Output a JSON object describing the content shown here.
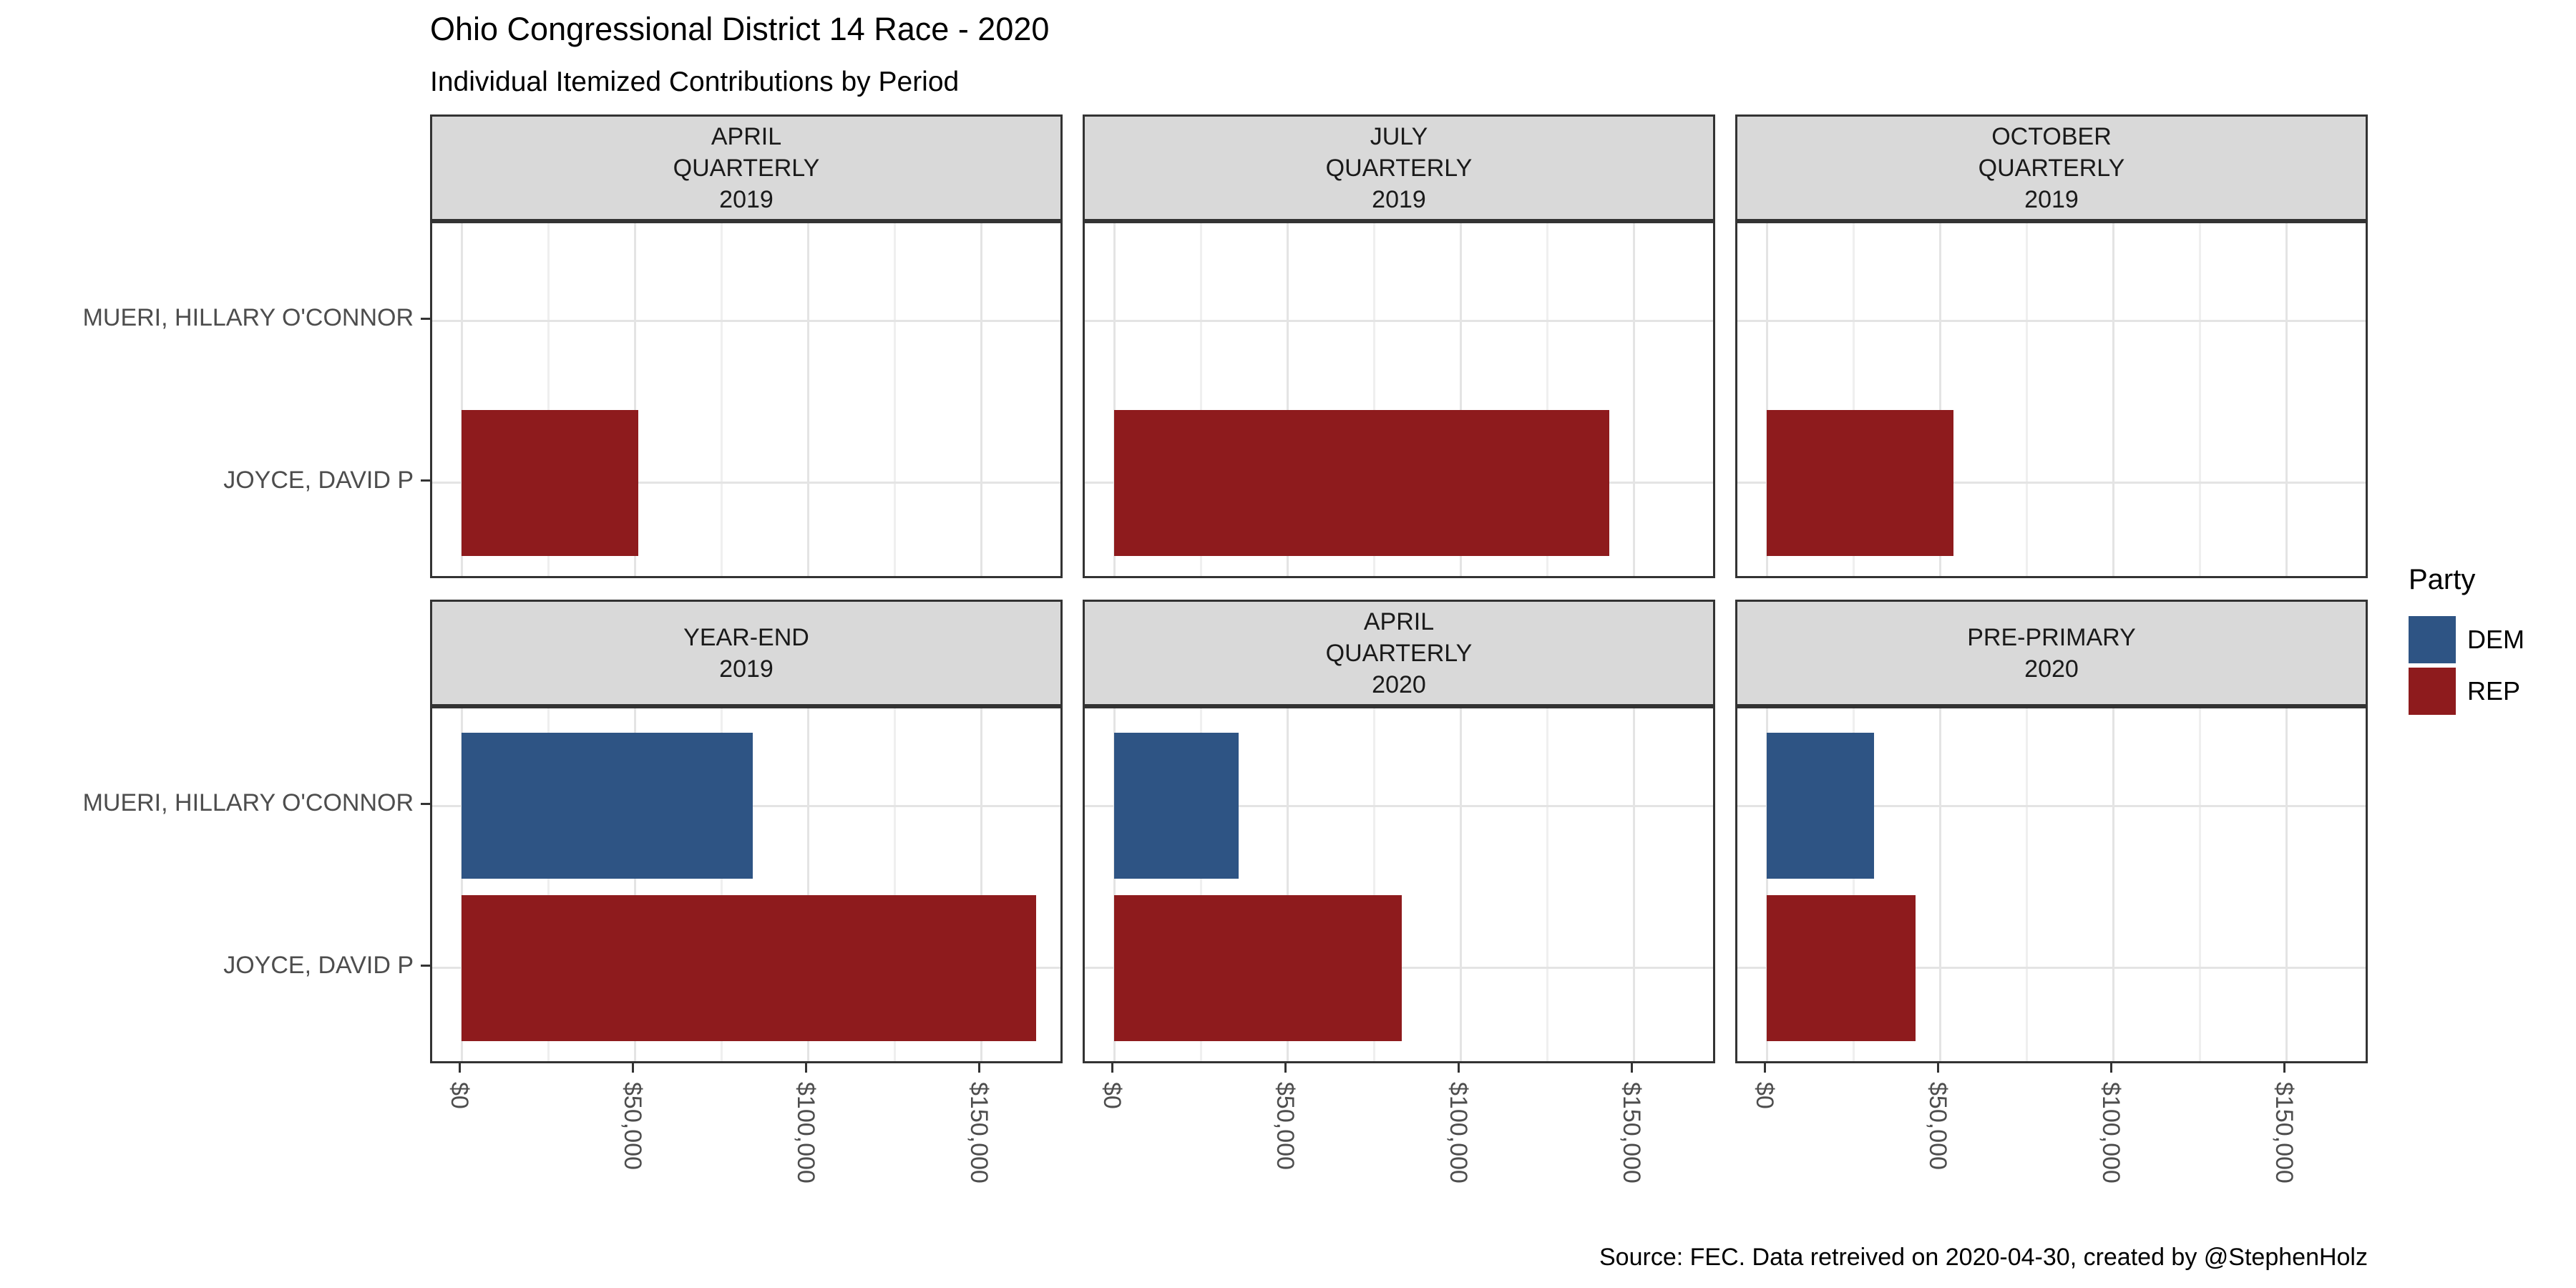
{
  "title": "Ohio Congressional District 14 Race - 2020",
  "subtitle": "Individual Itemized Contributions by Period",
  "caption": "Source: FEC. Data retreived on 2020-04-30, created by @StephenHolz",
  "legend": {
    "title": "Party",
    "items": [
      {
        "label": "DEM",
        "color": "#2E5484"
      },
      {
        "label": "REP",
        "color": "#8E1B1D"
      }
    ]
  },
  "colors": {
    "dem": "#2E5484",
    "rep": "#8E1B1D",
    "strip_fill": "#D9D9D9",
    "panel_border": "#333333",
    "axis_text": "#4D4D4D",
    "grid_minor": "#EFEFEF",
    "grid_major": "#E4E4E4"
  },
  "chart_data": {
    "type": "bar",
    "orientation": "horizontal",
    "title": "Ohio Congressional District 14 Race - 2020",
    "subtitle": "Individual Itemized Contributions by Period",
    "xlabel": "",
    "ylabel": "",
    "x_axis": {
      "ticks": [
        {
          "label": "$0",
          "value": 0
        },
        {
          "label": "$50,000",
          "value": 50000
        },
        {
          "label": "$100,000",
          "value": 100000
        },
        {
          "label": "$150,000",
          "value": 150000
        }
      ],
      "minor_step": 25000,
      "max_gridline": 150000,
      "range": [
        0,
        174000
      ],
      "grid": true
    },
    "y_categories": [
      "MUERI, HILLARY O'CONNOR",
      "JOYCE, DAVID P"
    ],
    "legend_position": "right",
    "series_colors": {
      "DEM": "#2E5484",
      "REP": "#8E1B1D"
    },
    "facets": [
      {
        "period": "APRIL QUARTERLY 2019",
        "strip_lines": [
          "APRIL",
          "QUARTERLY",
          "2019"
        ],
        "bars": [
          {
            "candidate": "MUERI, HILLARY O'CONNOR",
            "party": "DEM",
            "value": 0
          },
          {
            "candidate": "JOYCE, DAVID P",
            "party": "REP",
            "value": 51000
          }
        ]
      },
      {
        "period": "JULY QUARTERLY 2019",
        "strip_lines": [
          "JULY",
          "QUARTERLY",
          "2019"
        ],
        "bars": [
          {
            "candidate": "MUERI, HILLARY O'CONNOR",
            "party": "DEM",
            "value": 0
          },
          {
            "candidate": "JOYCE, DAVID P",
            "party": "REP",
            "value": 143000
          }
        ]
      },
      {
        "period": "OCTOBER QUARTERLY 2019",
        "strip_lines": [
          "OCTOBER",
          "QUARTERLY",
          "2019"
        ],
        "bars": [
          {
            "candidate": "MUERI, HILLARY O'CONNOR",
            "party": "DEM",
            "value": 0
          },
          {
            "candidate": "JOYCE, DAVID P",
            "party": "REP",
            "value": 54000
          }
        ]
      },
      {
        "period": "YEAR-END 2019",
        "strip_lines": [
          "YEAR-END",
          "2019"
        ],
        "bars": [
          {
            "candidate": "MUERI, HILLARY O'CONNOR",
            "party": "DEM",
            "value": 84000
          },
          {
            "candidate": "JOYCE, DAVID P",
            "party": "REP",
            "value": 166000
          }
        ]
      },
      {
        "period": "APRIL QUARTERLY 2020",
        "strip_lines": [
          "APRIL",
          "QUARTERLY",
          "2020"
        ],
        "bars": [
          {
            "candidate": "MUERI, HILLARY O'CONNOR",
            "party": "DEM",
            "value": 36000
          },
          {
            "candidate": "JOYCE, DAVID P",
            "party": "REP",
            "value": 83000
          }
        ]
      },
      {
        "period": "PRE-PRIMARY 2020",
        "strip_lines": [
          "PRE-PRIMARY",
          "2020"
        ],
        "bars": [
          {
            "candidate": "MUERI, HILLARY O'CONNOR",
            "party": "DEM",
            "value": 31000
          },
          {
            "candidate": "JOYCE, DAVID P",
            "party": "REP",
            "value": 43000
          }
        ]
      }
    ]
  }
}
